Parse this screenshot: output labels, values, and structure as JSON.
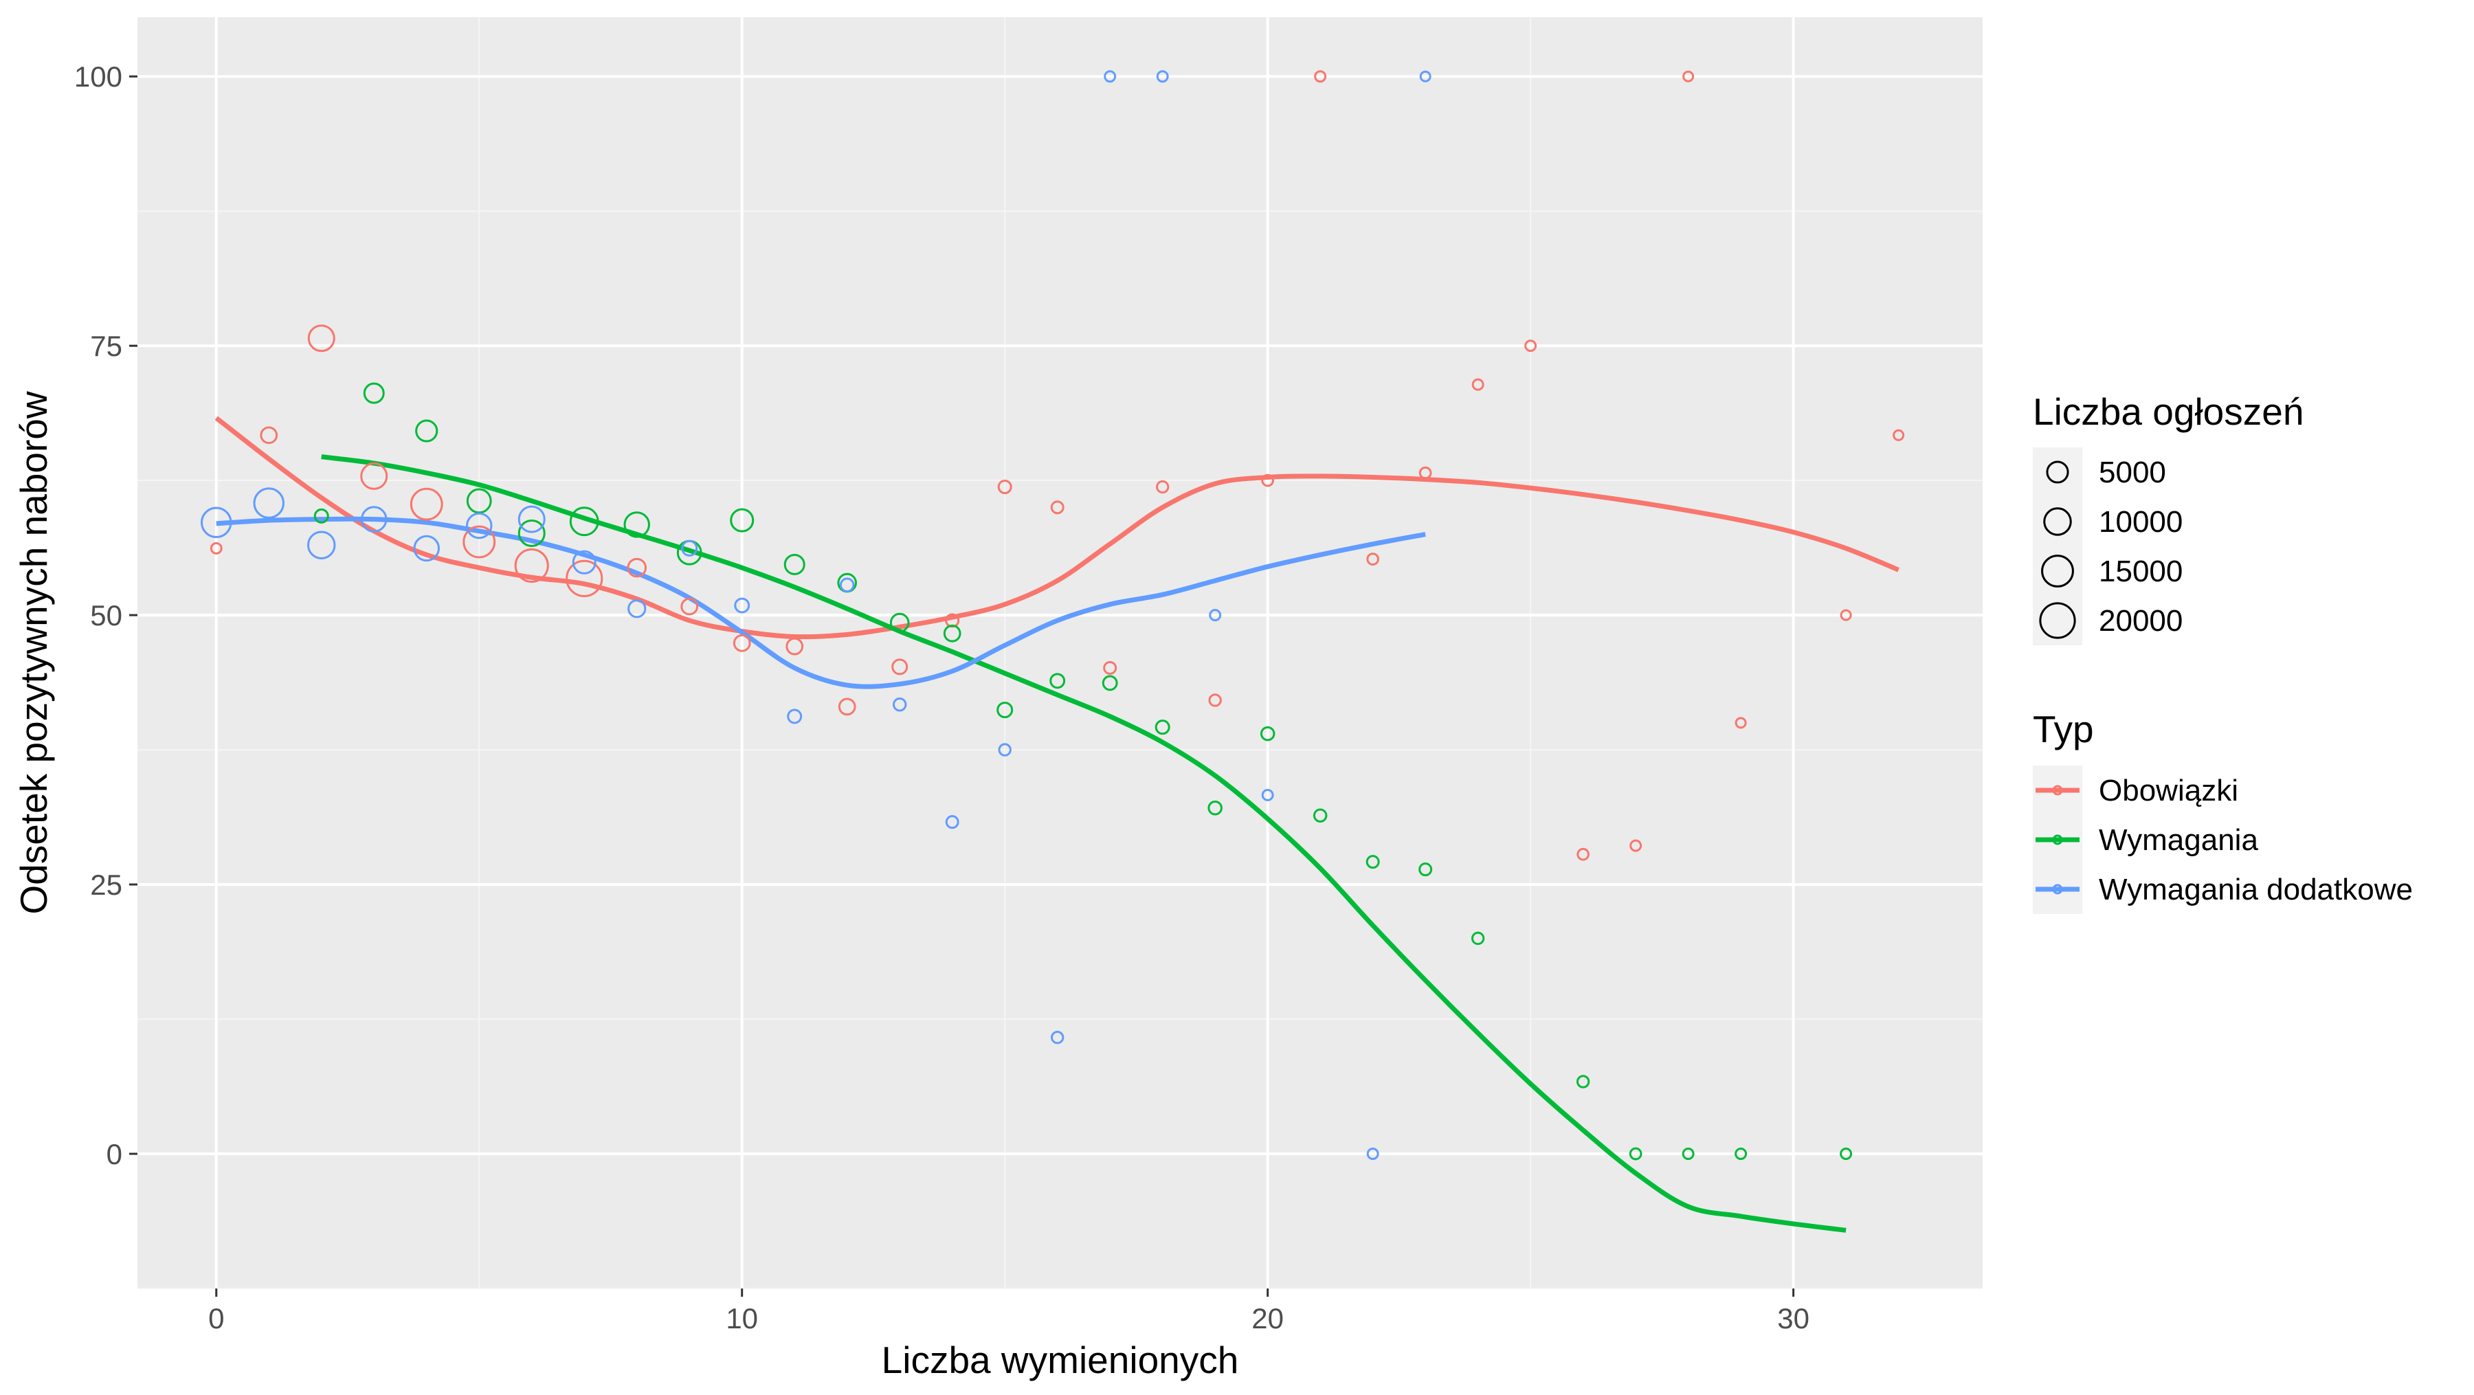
{
  "chart_data": {
    "type": "scatter",
    "xlabel": "Liczba wymienionych",
    "ylabel": "Odsetek pozytywnych naborów",
    "xlim": [
      -1.5,
      33.6
    ],
    "ylim": [
      -12.5,
      105.5
    ],
    "x_ticks": [
      0,
      10,
      20,
      30
    ],
    "y_ticks": [
      0,
      25,
      50,
      75,
      100
    ],
    "x_minor": [
      -5,
      5,
      15,
      25,
      35
    ],
    "y_minor": [
      -12.5,
      12.5,
      37.5,
      62.5,
      87.5
    ],
    "grid": true,
    "legend_position": "right",
    "size_legend": {
      "title": "Liczba ogłoszeń",
      "entries": [
        {
          "label": "5000",
          "value": 5000
        },
        {
          "label": "10000",
          "value": 10000
        },
        {
          "label": "15000",
          "value": 15000
        },
        {
          "label": "20000",
          "value": 20000
        }
      ]
    },
    "color_legend": {
      "title": "Typ"
    },
    "series": [
      {
        "name": "Obowiązki",
        "color": "#F8766D",
        "points": [
          {
            "x": 0,
            "y": 56.2,
            "n": 300
          },
          {
            "x": 1,
            "y": 66.7,
            "n": 2000
          },
          {
            "x": 2,
            "y": 75.7,
            "n": 9000
          },
          {
            "x": 3,
            "y": 62.9,
            "n": 9000
          },
          {
            "x": 4,
            "y": 60.3,
            "n": 15000
          },
          {
            "x": 5,
            "y": 56.8,
            "n": 15000
          },
          {
            "x": 6,
            "y": 54.6,
            "n": 17000
          },
          {
            "x": 7,
            "y": 53.4,
            "n": 21000
          },
          {
            "x": 8,
            "y": 54.4,
            "n": 3000
          },
          {
            "x": 9,
            "y": 50.8,
            "n": 2000
          },
          {
            "x": 10,
            "y": 47.4,
            "n": 2000
          },
          {
            "x": 11,
            "y": 47.1,
            "n": 2000
          },
          {
            "x": 12,
            "y": 41.5,
            "n": 2000
          },
          {
            "x": 13,
            "y": 45.2,
            "n": 1500
          },
          {
            "x": 14,
            "y": 49.5,
            "n": 800
          },
          {
            "x": 15,
            "y": 61.9,
            "n": 800
          },
          {
            "x": 16,
            "y": 60.0,
            "n": 600
          },
          {
            "x": 17,
            "y": 45.1,
            "n": 600
          },
          {
            "x": 18,
            "y": 61.9,
            "n": 500
          },
          {
            "x": 19,
            "y": 42.1,
            "n": 500
          },
          {
            "x": 20,
            "y": 62.5,
            "n": 400
          },
          {
            "x": 21,
            "y": 100,
            "n": 300
          },
          {
            "x": 22,
            "y": 55.2,
            "n": 400
          },
          {
            "x": 23,
            "y": 63.2,
            "n": 400
          },
          {
            "x": 24,
            "y": 71.4,
            "n": 300
          },
          {
            "x": 25,
            "y": 75.0,
            "n": 300
          },
          {
            "x": 26,
            "y": 27.8,
            "n": 400
          },
          {
            "x": 27,
            "y": 28.6,
            "n": 300
          },
          {
            "x": 28,
            "y": 100,
            "n": 200
          },
          {
            "x": 29,
            "y": 40.0,
            "n": 200
          },
          {
            "x": 31,
            "y": 50.0,
            "n": 200
          },
          {
            "x": 32,
            "y": 66.7,
            "n": 200
          }
        ],
        "trend": [
          [
            0,
            68.3
          ],
          [
            1,
            64.5
          ],
          [
            2,
            60.9
          ],
          [
            3,
            57.8
          ],
          [
            4,
            55.6
          ],
          [
            5,
            54.4
          ],
          [
            6,
            53.5
          ],
          [
            7,
            52.9
          ],
          [
            8,
            51.5
          ],
          [
            9,
            49.5
          ],
          [
            10,
            48.5
          ],
          [
            11,
            48.0
          ],
          [
            12,
            48.2
          ],
          [
            13,
            48.9
          ],
          [
            14,
            49.8
          ],
          [
            15,
            51.0
          ],
          [
            16,
            53.2
          ],
          [
            17,
            56.6
          ],
          [
            18,
            60.0
          ],
          [
            19,
            62.2
          ],
          [
            20,
            62.8
          ],
          [
            21,
            62.9
          ],
          [
            22,
            62.8
          ],
          [
            23,
            62.6
          ],
          [
            24,
            62.3
          ],
          [
            25,
            61.8
          ],
          [
            26,
            61.2
          ],
          [
            27,
            60.5
          ],
          [
            28,
            59.7
          ],
          [
            29,
            58.8
          ],
          [
            30,
            57.7
          ],
          [
            31,
            56.2
          ],
          [
            32,
            54.2
          ]
        ]
      },
      {
        "name": "Wymagania",
        "color": "#00BA38",
        "points": [
          {
            "x": 2,
            "y": 59.2,
            "n": 1000
          },
          {
            "x": 3,
            "y": 70.6,
            "n": 4000
          },
          {
            "x": 4,
            "y": 67.1,
            "n": 5000
          },
          {
            "x": 5,
            "y": 60.6,
            "n": 7000
          },
          {
            "x": 6,
            "y": 57.6,
            "n": 9000
          },
          {
            "x": 7,
            "y": 58.7,
            "n": 11000
          },
          {
            "x": 8,
            "y": 58.4,
            "n": 8000
          },
          {
            "x": 9,
            "y": 55.8,
            "n": 7000
          },
          {
            "x": 10,
            "y": 58.8,
            "n": 6000
          },
          {
            "x": 11,
            "y": 54.7,
            "n": 4000
          },
          {
            "x": 12,
            "y": 53.0,
            "n": 3000
          },
          {
            "x": 13,
            "y": 49.3,
            "n": 3000
          },
          {
            "x": 14,
            "y": 48.3,
            "n": 2000
          },
          {
            "x": 15,
            "y": 41.2,
            "n": 1500
          },
          {
            "x": 16,
            "y": 43.9,
            "n": 1200
          },
          {
            "x": 17,
            "y": 43.7,
            "n": 1200
          },
          {
            "x": 18,
            "y": 39.6,
            "n": 1000
          },
          {
            "x": 19,
            "y": 32.1,
            "n": 900
          },
          {
            "x": 20,
            "y": 39.0,
            "n": 900
          },
          {
            "x": 21,
            "y": 31.4,
            "n": 700
          },
          {
            "x": 22,
            "y": 27.1,
            "n": 600
          },
          {
            "x": 23,
            "y": 26.4,
            "n": 600
          },
          {
            "x": 24,
            "y": 20.0,
            "n": 500
          },
          {
            "x": 26,
            "y": 6.7,
            "n": 500
          },
          {
            "x": 27,
            "y": 0,
            "n": 400
          },
          {
            "x": 28,
            "y": 0,
            "n": 300
          },
          {
            "x": 29,
            "y": 0,
            "n": 300
          },
          {
            "x": 31,
            "y": 0,
            "n": 300
          }
        ],
        "trend": [
          [
            2,
            64.7
          ],
          [
            3,
            64.1
          ],
          [
            4,
            63.2
          ],
          [
            5,
            62.1
          ],
          [
            6,
            60.6
          ],
          [
            7,
            59.0
          ],
          [
            8,
            57.5
          ],
          [
            9,
            56.0
          ],
          [
            10,
            54.4
          ],
          [
            11,
            52.6
          ],
          [
            12,
            50.6
          ],
          [
            13,
            48.5
          ],
          [
            14,
            46.6
          ],
          [
            15,
            44.6
          ],
          [
            16,
            42.6
          ],
          [
            17,
            40.6
          ],
          [
            18,
            38.2
          ],
          [
            19,
            35.1
          ],
          [
            20,
            31.1
          ],
          [
            21,
            26.5
          ],
          [
            22,
            21.2
          ],
          [
            23,
            16.1
          ],
          [
            24,
            11.2
          ],
          [
            25,
            6.5
          ],
          [
            26,
            2.2
          ],
          [
            27,
            -1.8
          ],
          [
            28,
            -4.9
          ],
          [
            29,
            -5.8
          ],
          [
            30,
            -6.5
          ],
          [
            31,
            -7.1
          ]
        ]
      },
      {
        "name": "Wymagania dodatkowe",
        "color": "#619CFF",
        "points": [
          {
            "x": 0,
            "y": 58.6,
            "n": 13000
          },
          {
            "x": 1,
            "y": 60.4,
            "n": 13000
          },
          {
            "x": 2,
            "y": 56.5,
            "n": 10000
          },
          {
            "x": 3,
            "y": 58.9,
            "n": 8000
          },
          {
            "x": 4,
            "y": 56.2,
            "n": 8000
          },
          {
            "x": 5,
            "y": 58.3,
            "n": 8000
          },
          {
            "x": 6,
            "y": 58.9,
            "n": 9000
          },
          {
            "x": 7,
            "y": 54.9,
            "n": 6000
          },
          {
            "x": 8,
            "y": 50.6,
            "n": 2500
          },
          {
            "x": 9,
            "y": 56.2,
            "n": 1500
          },
          {
            "x": 10,
            "y": 50.9,
            "n": 1200
          },
          {
            "x": 11,
            "y": 40.6,
            "n": 1000
          },
          {
            "x": 12,
            "y": 52.8,
            "n": 900
          },
          {
            "x": 13,
            "y": 41.7,
            "n": 700
          },
          {
            "x": 14,
            "y": 30.8,
            "n": 600
          },
          {
            "x": 15,
            "y": 37.5,
            "n": 500
          },
          {
            "x": 16,
            "y": 10.8,
            "n": 500
          },
          {
            "x": 17,
            "y": 100,
            "n": 300
          },
          {
            "x": 18,
            "y": 100,
            "n": 300
          },
          {
            "x": 19,
            "y": 50.0,
            "n": 300
          },
          {
            "x": 20,
            "y": 33.3,
            "n": 300
          },
          {
            "x": 22,
            "y": 0,
            "n": 300
          },
          {
            "x": 23,
            "y": 100,
            "n": 200
          }
        ],
        "trend": [
          [
            0,
            58.5
          ],
          [
            1,
            58.8
          ],
          [
            2,
            58.9
          ],
          [
            3,
            58.9
          ],
          [
            4,
            58.6
          ],
          [
            5,
            57.8
          ],
          [
            6,
            56.9
          ],
          [
            7,
            55.6
          ],
          [
            8,
            53.9
          ],
          [
            9,
            51.6
          ],
          [
            10,
            48.4
          ],
          [
            11,
            45.1
          ],
          [
            12,
            43.5
          ],
          [
            13,
            43.6
          ],
          [
            14,
            44.8
          ],
          [
            15,
            47.2
          ],
          [
            16,
            49.5
          ],
          [
            17,
            51.0
          ],
          [
            18,
            51.9
          ],
          [
            19,
            53.2
          ],
          [
            20,
            54.5
          ],
          [
            21,
            55.6
          ],
          [
            22,
            56.6
          ],
          [
            23,
            57.5
          ]
        ]
      }
    ]
  }
}
